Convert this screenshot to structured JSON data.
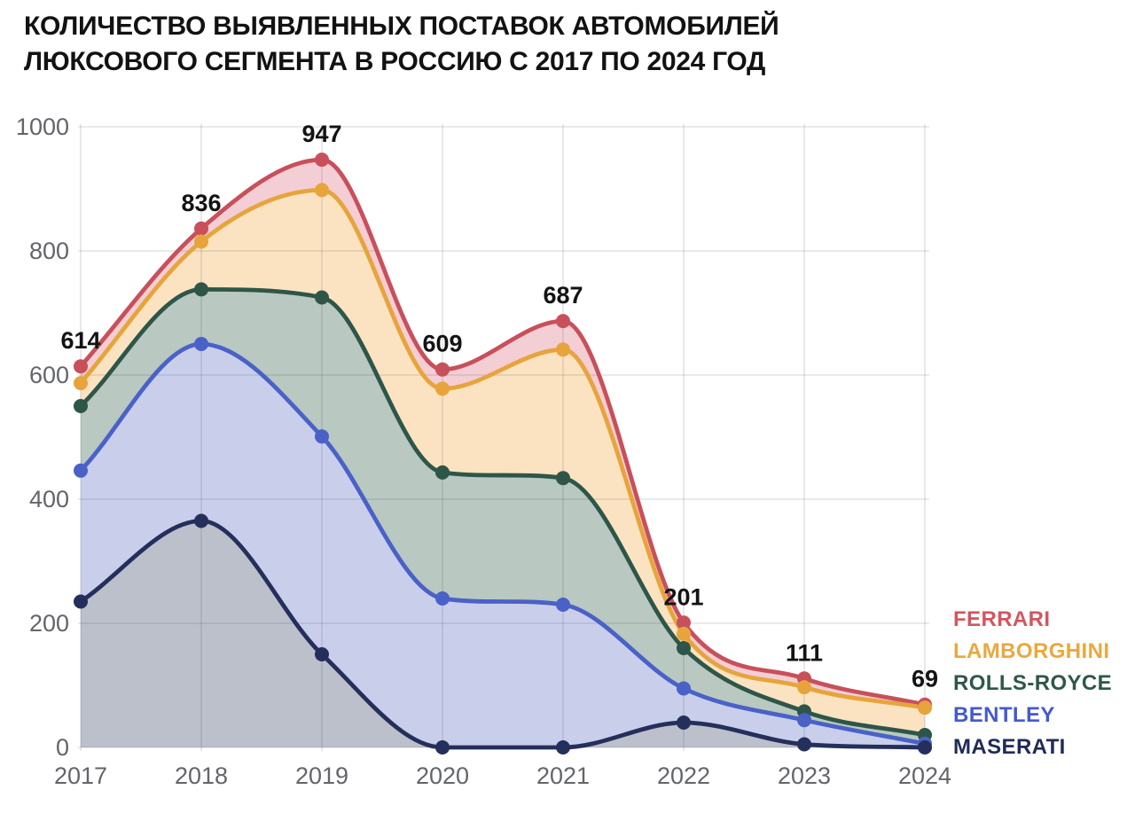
{
  "title": {
    "line1": "КОЛИЧЕСТВО ВЫЯВЛЕННЫХ ПОСТАВОК АВТОМОБИЛЕЙ",
    "line2": "ЛЮКСОВОГО СЕГМЕНТА В РОССИЮ С 2017 ПО 2024 ГОД"
  },
  "chart_data": {
    "type": "area",
    "title": "КОЛИЧЕСТВО ВЫЯВЛЕННЫХ ПОСТАВОК АВТОМОБИЛЕЙ ЛЮКСОВОГО СЕГМЕНТА В РОССИЮ С 2017 ПО 2024 ГОД",
    "x": [
      "2017",
      "2018",
      "2019",
      "2020",
      "2021",
      "2022",
      "2023",
      "2024"
    ],
    "series": [
      {
        "name": "FERRARI",
        "line_color": "#c8505b",
        "fill_color": "#f3ced5",
        "legend_color": "#d4555f",
        "values": [
          614,
          836,
          947,
          609,
          687,
          201,
          111,
          69
        ]
      },
      {
        "name": "LAMBORGHINI",
        "line_color": "#e7a43c",
        "fill_color": "#fbe3c2",
        "legend_color": "#eaa83e",
        "values": [
          587,
          815,
          898,
          578,
          641,
          183,
          97,
          64
        ]
      },
      {
        "name": "ROLLS-ROYCE",
        "line_color": "#2e5648",
        "fill_color": "#b9c8c0",
        "legend_color": "#2e5748",
        "values": [
          550,
          738,
          725,
          443,
          434,
          160,
          58,
          20
        ]
      },
      {
        "name": "BENTLEY",
        "line_color": "#4a61c8",
        "fill_color": "#c9cfeb",
        "legend_color": "#4659cc",
        "values": [
          446,
          650,
          501,
          240,
          230,
          95,
          44,
          6
        ]
      },
      {
        "name": "MASERATI",
        "line_color": "#242f5c",
        "fill_color": "#bbc0cb",
        "legend_color": "#202b57",
        "values": [
          235,
          365,
          150,
          0,
          0,
          40,
          5,
          0
        ]
      }
    ],
    "labeled_series": "FERRARI",
    "point_labels": [
      614,
      836,
      947,
      609,
      687,
      201,
      111,
      69
    ],
    "yticks": [
      0,
      200,
      400,
      600,
      800,
      1000
    ],
    "ylim": [
      0,
      1000
    ],
    "grid": true,
    "legend_position": "right",
    "axis_label_color": "#63656b",
    "grid_color": "rgba(40,40,60,0.13)",
    "value_label_color": "#131313",
    "background_color": "#ffffff"
  }
}
